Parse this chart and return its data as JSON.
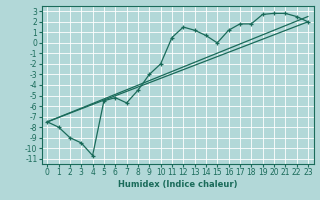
{
  "title": "",
  "xlabel": "Humidex (Indice chaleur)",
  "background_color": "#b2d8d8",
  "grid_color": "#ffffff",
  "line_color": "#1a6b5a",
  "xlim": [
    -0.5,
    23.5
  ],
  "ylim": [
    -11.5,
    3.5
  ],
  "xticks": [
    0,
    1,
    2,
    3,
    4,
    5,
    6,
    7,
    8,
    9,
    10,
    11,
    12,
    13,
    14,
    15,
    16,
    17,
    18,
    19,
    20,
    21,
    22,
    23
  ],
  "yticks": [
    3,
    2,
    1,
    0,
    -1,
    -2,
    -3,
    -4,
    -5,
    -6,
    -7,
    -8,
    -9,
    -10,
    -11
  ],
  "curve_x": [
    0,
    1,
    2,
    3,
    4,
    5,
    6,
    7,
    8,
    9,
    10,
    11,
    12,
    13,
    14,
    15,
    16,
    17,
    18,
    19,
    20,
    21,
    22,
    23
  ],
  "curve_y": [
    -7.5,
    -8.0,
    -9.0,
    -9.5,
    -10.7,
    -5.5,
    -5.2,
    -5.7,
    -4.5,
    -3.0,
    -2.0,
    0.5,
    1.5,
    1.2,
    0.7,
    0.0,
    1.2,
    1.8,
    1.8,
    2.7,
    2.8,
    2.8,
    2.5,
    2.0
  ],
  "line1_x": [
    0,
    23
  ],
  "line1_y": [
    -7.5,
    2.0
  ],
  "line2_x": [
    0,
    23
  ],
  "line2_y": [
    -7.5,
    2.5
  ],
  "font_size": 6,
  "tick_label_size": 5.5
}
